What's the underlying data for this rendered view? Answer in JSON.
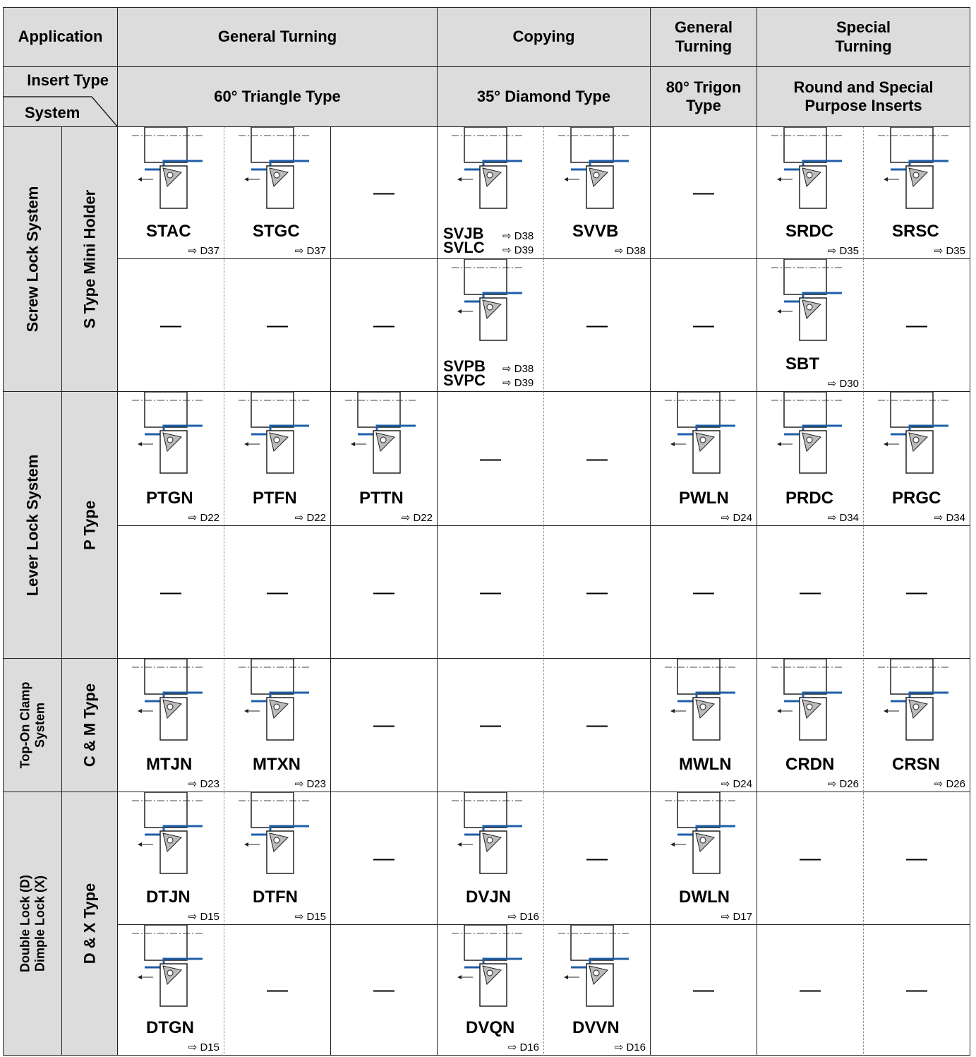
{
  "header": {
    "application": "Application",
    "insert_type": "Insert Type",
    "system": "System",
    "applications": [
      [
        "General Turning"
      ],
      [
        "Copying"
      ],
      [
        "General",
        "Turning"
      ],
      [
        "Special",
        "Turning"
      ]
    ],
    "insert_types": [
      [
        "60° Triangle Type"
      ],
      [
        "35° Diamond Type"
      ],
      [
        "80° Trigon",
        "Type"
      ],
      [
        "Round and Special",
        "Purpose Inserts"
      ]
    ]
  },
  "groups": [
    {
      "system": [
        "Screw Lock System"
      ],
      "holder": "S Type Mini Holder",
      "rows": [
        [
          {
            "tools": [
              {
                "name": "STAC",
                "ref": "⇨ D37"
              }
            ]
          },
          {
            "tools": [
              {
                "name": "STGC",
                "ref": "⇨ D37"
              }
            ]
          },
          "—",
          {
            "tools": [
              {
                "name": "SVJB",
                "ref": "⇨ D38"
              },
              {
                "name": "SVLC",
                "ref": "⇨ D39"
              }
            ]
          },
          {
            "tools": [
              {
                "name": "SVVB",
                "ref": "⇨ D38"
              }
            ]
          },
          "—",
          {
            "tools": [
              {
                "name": "SRDC",
                "ref": "⇨ D35"
              }
            ]
          },
          {
            "tools": [
              {
                "name": "SRSC",
                "ref": "⇨ D35"
              }
            ]
          }
        ],
        [
          "—",
          "—",
          "—",
          {
            "tools": [
              {
                "name": "SVPB",
                "ref": "⇨ D38"
              },
              {
                "name": "SVPC",
                "ref": "⇨ D39"
              }
            ]
          },
          "—",
          "—",
          {
            "tools": [
              {
                "name": "SBT",
                "ref": "⇨ D30"
              }
            ]
          },
          "—"
        ]
      ]
    },
    {
      "system": [
        "Lever Lock System"
      ],
      "holder": "P Type",
      "rows": [
        [
          {
            "tools": [
              {
                "name": "PTGN",
                "ref": "⇨ D22"
              }
            ]
          },
          {
            "tools": [
              {
                "name": "PTFN",
                "ref": "⇨ D22"
              }
            ]
          },
          {
            "tools": [
              {
                "name": "PTTN",
                "ref": "⇨ D22"
              }
            ]
          },
          "—",
          "—",
          {
            "tools": [
              {
                "name": "PWLN",
                "ref": "⇨ D24"
              }
            ]
          },
          {
            "tools": [
              {
                "name": "PRDC",
                "ref": "⇨ D34"
              }
            ]
          },
          {
            "tools": [
              {
                "name": "PRGC",
                "ref": "⇨ D34"
              }
            ]
          }
        ],
        [
          "—",
          "—",
          "—",
          "—",
          "—",
          "—",
          "—",
          "—"
        ]
      ]
    },
    {
      "system": [
        "Top-On Clamp",
        "System"
      ],
      "holder": "C & M Type",
      "rows": [
        [
          {
            "tools": [
              {
                "name": "MTJN",
                "ref": "⇨ D23"
              }
            ]
          },
          {
            "tools": [
              {
                "name": "MTXN",
                "ref": "⇨ D23"
              }
            ]
          },
          "—",
          "—",
          "—",
          {
            "tools": [
              {
                "name": "MWLN",
                "ref": "⇨ D24"
              }
            ]
          },
          {
            "tools": [
              {
                "name": "CRDN",
                "ref": "⇨ D26"
              }
            ]
          },
          {
            "tools": [
              {
                "name": "CRSN",
                "ref": "⇨ D26"
              }
            ]
          }
        ]
      ]
    },
    {
      "system": [
        "Double Lock (D)",
        "Dimple Lock (X)"
      ],
      "holder": "D & X Type",
      "rows": [
        [
          {
            "tools": [
              {
                "name": "DTJN",
                "ref": "⇨ D15"
              }
            ]
          },
          {
            "tools": [
              {
                "name": "DTFN",
                "ref": "⇨ D15"
              }
            ]
          },
          "—",
          {
            "tools": [
              {
                "name": "DVJN",
                "ref": "⇨ D16"
              }
            ]
          },
          "—",
          {
            "tools": [
              {
                "name": "DWLN",
                "ref": "⇨ D17"
              }
            ]
          },
          "—",
          "—"
        ],
        [
          {
            "tools": [
              {
                "name": "DTGN",
                "ref": "⇨ D15"
              }
            ]
          },
          "—",
          "—",
          {
            "tools": [
              {
                "name": "DVQN",
                "ref": "⇨ D16"
              }
            ]
          },
          {
            "tools": [
              {
                "name": "DVVN",
                "ref": "⇨ D16"
              }
            ]
          },
          "—",
          "—",
          "—"
        ]
      ]
    }
  ]
}
